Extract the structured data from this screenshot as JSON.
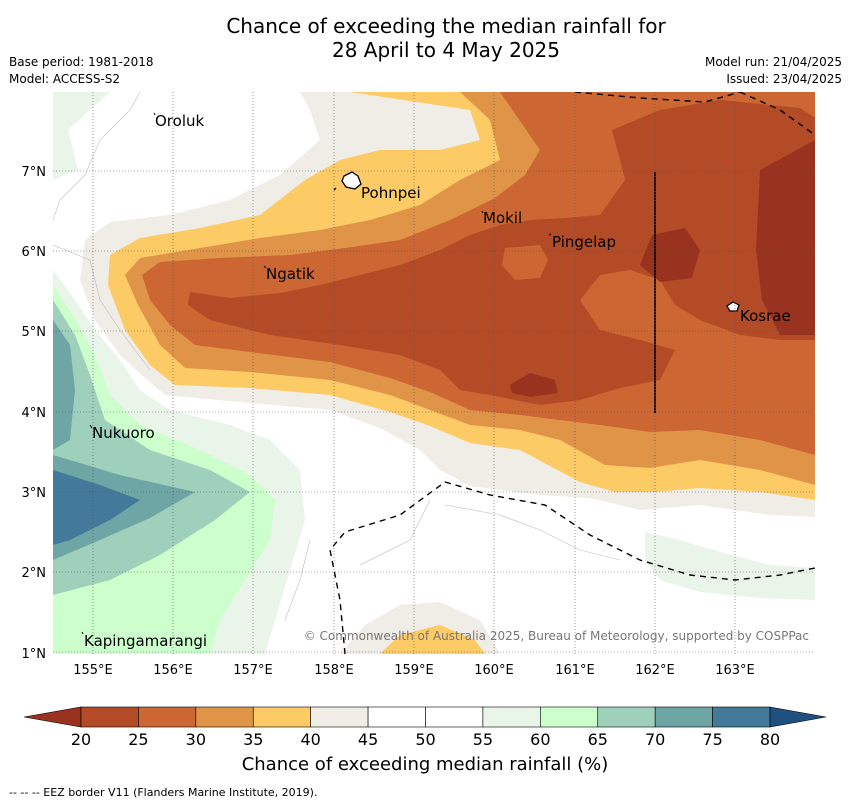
{
  "title_line1": "Chance of exceeding the median rainfall for",
  "title_line2": "28 April to 4 May 2025",
  "base_period": "Base period: 1981-2018",
  "model": "Model: ACCESS-S2",
  "model_run": "Model run: 21/04/2025",
  "issued": "Issued: 23/04/2025",
  "copyright": "© Commonwealth of Australia 2025, Bureau of Meteorology, supported by COSPPac",
  "lon_labels": [
    "155°E",
    "156°E",
    "157°E",
    "158°E",
    "159°E",
    "160°E",
    "161°E",
    "162°E",
    "163°E"
  ],
  "lat_labels": [
    "7°N",
    "6°N",
    "5°N",
    "4°N",
    "3°N",
    "2°N",
    "1°N"
  ],
  "places": [
    {
      "name": "Oroluk"
    },
    {
      "name": "Pohnpei"
    },
    {
      "name": "Mokil"
    },
    {
      "name": "Pingelap"
    },
    {
      "name": "Ngatik"
    },
    {
      "name": "Kosrae"
    },
    {
      "name": "Nukuoro"
    },
    {
      "name": "Kapingamarangi"
    }
  ],
  "colorbar": {
    "ticks": [
      "20",
      "25",
      "30",
      "35",
      "40",
      "45",
      "50",
      "55",
      "60",
      "65",
      "70",
      "75",
      "80"
    ],
    "colors": [
      "#b34b26",
      "#cc6633",
      "#e09448",
      "#fdcb66",
      "#f0ece6",
      "#ffffff",
      "#ffffff",
      "#eaf5ea",
      "#ccffcc",
      "#9fd0bc",
      "#6ea5a5",
      "#437a99"
    ],
    "under_color": "#99331f",
    "over_color": "#1f5080",
    "label": "Chance of exceeding median rainfall (%)"
  },
  "footnote": "--  --  -- EEZ border V11 (Flanders Marine Institute, 2019)."
}
